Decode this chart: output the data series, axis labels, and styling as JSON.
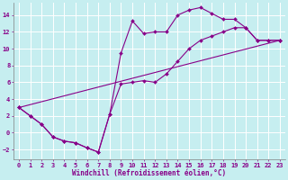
{
  "xlabel": "Windchill (Refroidissement éolien,°C)",
  "bg_color": "#c6eef0",
  "line_color": "#880088",
  "grid_color": "#ffffff",
  "xlim": [
    -0.5,
    23.5
  ],
  "ylim": [
    -3.2,
    15.5
  ],
  "xticks": [
    0,
    1,
    2,
    3,
    4,
    5,
    6,
    7,
    8,
    9,
    10,
    11,
    12,
    13,
    14,
    15,
    16,
    17,
    18,
    19,
    20,
    21,
    22,
    23
  ],
  "yticks": [
    -2,
    0,
    2,
    4,
    6,
    8,
    10,
    12,
    14
  ],
  "series1_x": [
    0,
    1,
    2,
    3,
    4,
    5,
    6,
    7,
    8,
    9,
    10,
    11,
    12,
    13,
    14,
    15,
    16,
    17,
    18,
    19,
    20,
    21,
    22,
    23
  ],
  "series1_y": [
    3,
    2,
    1,
    -0.5,
    -1,
    -1.2,
    -1.8,
    -2.3,
    2.2,
    9.5,
    13.3,
    11.8,
    12.0,
    12.0,
    14.0,
    14.6,
    14.9,
    14.2,
    13.5,
    13.5,
    12.5,
    11.0,
    11.0,
    11.0
  ],
  "series2_x": [
    0,
    1,
    2,
    3,
    4,
    5,
    6,
    7,
    8,
    9,
    10,
    11,
    12,
    13,
    14,
    15,
    16,
    17,
    18,
    19,
    20,
    21,
    22,
    23
  ],
  "series2_y": [
    3,
    2,
    1,
    -0.5,
    -1.0,
    -1.2,
    -1.8,
    -2.3,
    2.2,
    5.8,
    6.0,
    6.2,
    6.0,
    7.0,
    8.5,
    10.0,
    11.0,
    11.5,
    12.0,
    12.5,
    12.5,
    11.0,
    11.0,
    11.0
  ],
  "series3_x": [
    0,
    23
  ],
  "series3_y": [
    3,
    11.0
  ],
  "markersize": 2.0,
  "linewidth": 0.8,
  "tick_fontsize": 5.0,
  "xlabel_fontsize": 5.5
}
